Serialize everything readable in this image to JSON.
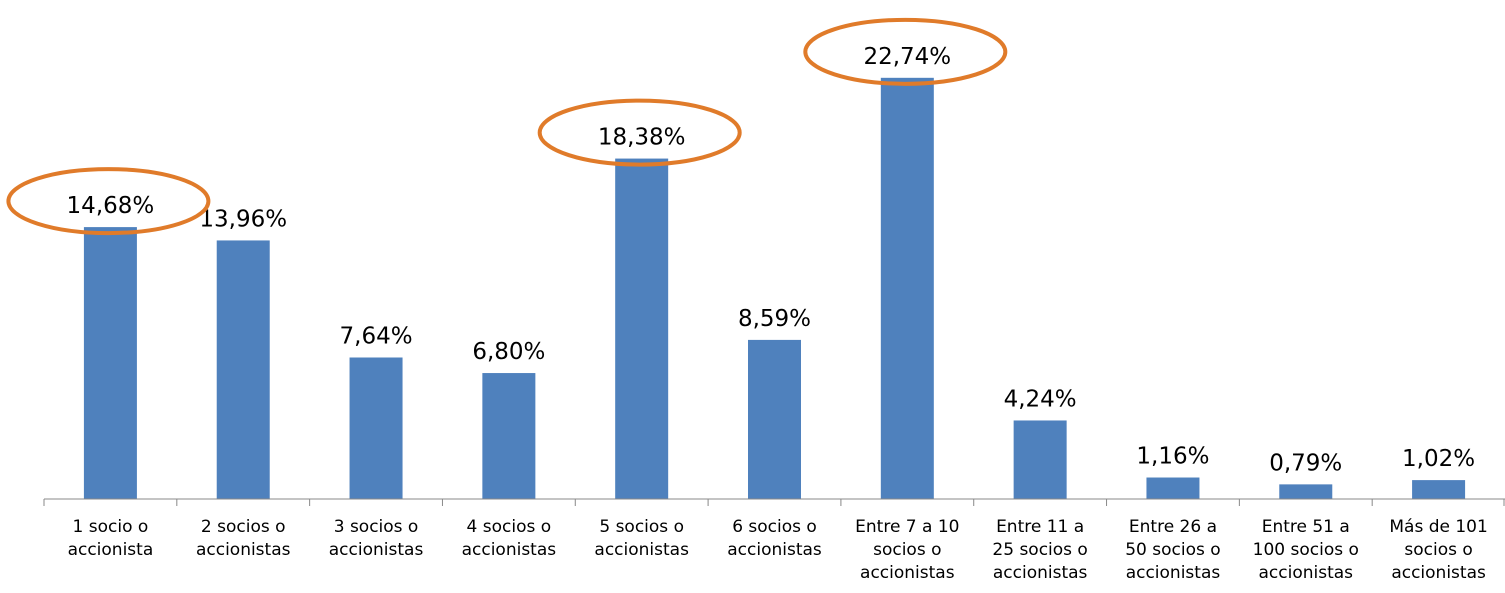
{
  "chart_data": {
    "type": "bar",
    "categories": [
      [
        "1 socio o",
        "accionista"
      ],
      [
        "2 socios o",
        "accionistas"
      ],
      [
        "3 socios o",
        "accionistas"
      ],
      [
        "4 socios o",
        "accionistas"
      ],
      [
        "5 socios o",
        "accionistas"
      ],
      [
        "6 socios o",
        "accionistas"
      ],
      [
        "Entre 7 a 10",
        "socios o",
        "accionistas"
      ],
      [
        "Entre 11 a",
        "25 socios o",
        "accionistas"
      ],
      [
        "Entre 26 a",
        "50 socios o",
        "accionistas"
      ],
      [
        "Entre 51 a",
        "100 socios o",
        "accionistas"
      ],
      [
        "Más de 101",
        "socios o",
        "accionistas"
      ]
    ],
    "values": [
      14.68,
      13.96,
      7.64,
      6.8,
      18.38,
      8.59,
      22.74,
      4.24,
      1.16,
      0.79,
      1.02
    ],
    "value_labels": [
      "14,68%",
      "13,96%",
      "7,64%",
      "6,80%",
      "18,38%",
      "8,59%",
      "22,74%",
      "4,24%",
      "1,16%",
      "0,79%",
      "1,02%"
    ],
    "highlighted": [
      0,
      4,
      6
    ],
    "ylim": [
      0,
      23
    ],
    "bar_color": "#4f81bd",
    "highlight_color": "#e07b2a",
    "axis_color": "#888888",
    "grid": false,
    "legend": "none"
  }
}
